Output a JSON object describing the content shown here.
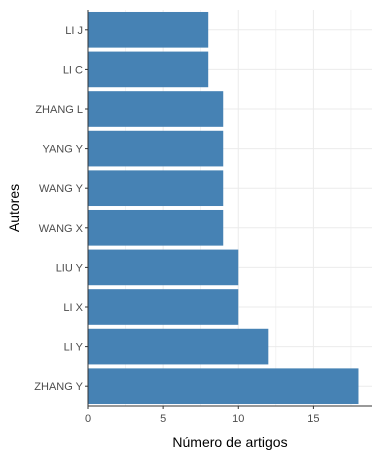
{
  "chart_data": {
    "type": "bar",
    "orientation": "horizontal",
    "categories": [
      "LI J",
      "LI C",
      "ZHANG L",
      "YANG Y",
      "WANG Y",
      "WANG X",
      "LIU Y",
      "LI X",
      "LI Y",
      "ZHANG Y"
    ],
    "values": [
      8,
      8,
      9,
      9,
      9,
      9,
      10,
      10,
      12,
      18
    ],
    "xlabel": "Número de artigos",
    "ylabel": "Autores",
    "xlim": [
      0,
      18.9
    ],
    "xticks": [
      0,
      5,
      10,
      15
    ],
    "grid": true,
    "bar_color": "#4682b4",
    "grid_color": "#ebebeb",
    "axis_color": "#333333"
  }
}
